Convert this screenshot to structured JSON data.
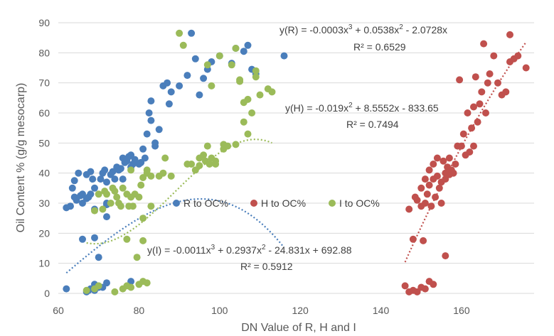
{
  "chart_data": {
    "type": "scatter",
    "xlabel": "DN Value of R, H and I",
    "ylabel": "Oil Content % (g/g mesocarp)",
    "xlim": [
      60,
      178
    ],
    "ylim": [
      0,
      90
    ],
    "xticks": [
      60,
      80,
      100,
      120,
      140,
      160
    ],
    "yticks": [
      0,
      10,
      20,
      30,
      40,
      50,
      60,
      70,
      80,
      90
    ],
    "grid": "horizontal",
    "legend_position": "center",
    "series": [
      {
        "name": "R to OC%",
        "color": "#4a7ebb",
        "points": [
          [
            62,
            1.5
          ],
          [
            67,
            0.5
          ],
          [
            68,
            1.5
          ],
          [
            69,
            3
          ],
          [
            70,
            2
          ],
          [
            71,
            2
          ],
          [
            72,
            3.5
          ],
          [
            69,
            1
          ],
          [
            67.5,
            1
          ],
          [
            62,
            28.5
          ],
          [
            63,
            29
          ],
          [
            63.5,
            35
          ],
          [
            64,
            32
          ],
          [
            64.5,
            31
          ],
          [
            64,
            37.5
          ],
          [
            65,
            40
          ],
          [
            65.5,
            32.5
          ],
          [
            66,
            33
          ],
          [
            66,
            30
          ],
          [
            67,
            31.5
          ],
          [
            67.5,
            32
          ],
          [
            67,
            39.5
          ],
          [
            68,
            40.5
          ],
          [
            68,
            33
          ],
          [
            68.5,
            38
          ],
          [
            69,
            35
          ],
          [
            69,
            28
          ],
          [
            70,
            12
          ],
          [
            70.5,
            38
          ],
          [
            71,
            40
          ],
          [
            71.5,
            41
          ],
          [
            72,
            37
          ],
          [
            72,
            30
          ],
          [
            72,
            25.5
          ],
          [
            73,
            39.5
          ],
          [
            73.5,
            40.5
          ],
          [
            74,
            38
          ],
          [
            74.5,
            42
          ],
          [
            75,
            41
          ],
          [
            75.5,
            41.5
          ],
          [
            76,
            45
          ],
          [
            76,
            38
          ],
          [
            76.5,
            43.5
          ],
          [
            77,
            44
          ],
          [
            77.5,
            45.5
          ],
          [
            78,
            46
          ],
          [
            78,
            42
          ],
          [
            78.5,
            43
          ],
          [
            79,
            44.5
          ],
          [
            80,
            43
          ],
          [
            80.5,
            43.5
          ],
          [
            81,
            48
          ],
          [
            81.5,
            45
          ],
          [
            82,
            53
          ],
          [
            82.5,
            60
          ],
          [
            83,
            64
          ],
          [
            83,
            57.5
          ],
          [
            84,
            49
          ],
          [
            84,
            50
          ],
          [
            85,
            54.5
          ],
          [
            86,
            69
          ],
          [
            87,
            70
          ],
          [
            87.5,
            63
          ],
          [
            88,
            67
          ],
          [
            66,
            18
          ],
          [
            69,
            18.5
          ],
          [
            72,
            29.5
          ],
          [
            78,
            4
          ],
          [
            90,
            69
          ],
          [
            92,
            72.5
          ],
          [
            93,
            86.5
          ],
          [
            94,
            78
          ],
          [
            95,
            66
          ],
          [
            96,
            71.5
          ],
          [
            97,
            74.5
          ],
          [
            98,
            77
          ],
          [
            100,
            79
          ],
          [
            103,
            76.5
          ],
          [
            104,
            81.5
          ],
          [
            106,
            80.5
          ],
          [
            107,
            82.5
          ],
          [
            108,
            74.5
          ],
          [
            109,
            73
          ],
          [
            116,
            79
          ]
        ]
      },
      {
        "name": "H to OC%",
        "color": "#c0504d",
        "points": [
          [
            146,
            2.5
          ],
          [
            147,
            0.5
          ],
          [
            148,
            1
          ],
          [
            149,
            0.5
          ],
          [
            150,
            2
          ],
          [
            151,
            1.5
          ],
          [
            152,
            4
          ],
          [
            153,
            3
          ],
          [
            147,
            28
          ],
          [
            148,
            18
          ],
          [
            148.5,
            32
          ],
          [
            149,
            31
          ],
          [
            150,
            29
          ],
          [
            150,
            35
          ],
          [
            150.5,
            17.5
          ],
          [
            151,
            30
          ],
          [
            151,
            38
          ],
          [
            151.5,
            33
          ],
          [
            152,
            36
          ],
          [
            152,
            41
          ],
          [
            152.5,
            29
          ],
          [
            153,
            38
          ],
          [
            153,
            43
          ],
          [
            153.5,
            32
          ],
          [
            154,
            39
          ],
          [
            154,
            45
          ],
          [
            154.5,
            35
          ],
          [
            155,
            37
          ],
          [
            155,
            30
          ],
          [
            155.5,
            44
          ],
          [
            156,
            40
          ],
          [
            156,
            38
          ],
          [
            156,
            12.5
          ],
          [
            156.5,
            42
          ],
          [
            157,
            45
          ],
          [
            157,
            39.5
          ],
          [
            157.5,
            41
          ],
          [
            158,
            40
          ],
          [
            158.5,
            43
          ],
          [
            159,
            49
          ],
          [
            159.5,
            71
          ],
          [
            160,
            49
          ],
          [
            160.5,
            53
          ],
          [
            161,
            46
          ],
          [
            161.5,
            60
          ],
          [
            162,
            47
          ],
          [
            162.5,
            55
          ],
          [
            163,
            49
          ],
          [
            163,
            62
          ],
          [
            163.5,
            72
          ],
          [
            164,
            57
          ],
          [
            164.5,
            63
          ],
          [
            165,
            67
          ],
          [
            165.5,
            83
          ],
          [
            166,
            60
          ],
          [
            166.5,
            70
          ],
          [
            167,
            73
          ],
          [
            168,
            79
          ],
          [
            169,
            70
          ],
          [
            170,
            66
          ],
          [
            171,
            67
          ],
          [
            172,
            77
          ],
          [
            172,
            86
          ],
          [
            173,
            78
          ],
          [
            174,
            79
          ],
          [
            176,
            75
          ]
        ]
      },
      {
        "name": "I to OC%",
        "color": "#9bbb59",
        "points": [
          [
            67,
            1
          ],
          [
            69,
            1.5
          ],
          [
            70,
            2.5
          ],
          [
            74,
            0.5
          ],
          [
            76,
            1.5
          ],
          [
            77,
            2.5
          ],
          [
            78,
            2
          ],
          [
            80,
            3
          ],
          [
            81,
            4
          ],
          [
            82,
            3.5
          ],
          [
            69,
            27.5
          ],
          [
            70,
            33
          ],
          [
            71,
            28
          ],
          [
            71.5,
            34
          ],
          [
            72,
            33
          ],
          [
            73,
            30
          ],
          [
            73.5,
            35
          ],
          [
            74,
            34
          ],
          [
            74.5,
            32
          ],
          [
            75,
            30
          ],
          [
            75.5,
            29
          ],
          [
            76,
            35
          ],
          [
            77,
            33
          ],
          [
            77.5,
            29
          ],
          [
            78,
            32
          ],
          [
            78,
            41
          ],
          [
            78.5,
            29
          ],
          [
            79,
            33
          ],
          [
            79.5,
            12
          ],
          [
            80,
            32
          ],
          [
            80.5,
            36
          ],
          [
            81,
            38.5
          ],
          [
            81,
            17.5
          ],
          [
            82,
            40
          ],
          [
            82,
            41
          ],
          [
            83,
            39
          ],
          [
            77,
            18
          ],
          [
            81,
            25
          ],
          [
            83,
            29
          ],
          [
            85,
            39
          ],
          [
            86,
            40
          ],
          [
            86.5,
            45
          ],
          [
            88,
            39
          ],
          [
            90,
            86.5
          ],
          [
            91,
            82.5
          ],
          [
            92,
            43
          ],
          [
            93,
            43
          ],
          [
            94,
            41
          ],
          [
            95,
            42.5
          ],
          [
            95,
            45
          ],
          [
            96,
            46
          ],
          [
            96.5,
            44
          ],
          [
            97,
            49
          ],
          [
            97,
            76
          ],
          [
            97.5,
            43
          ],
          [
            98,
            45
          ],
          [
            98,
            69
          ],
          [
            99,
            44
          ],
          [
            99,
            43
          ],
          [
            100,
            79
          ],
          [
            101,
            49.5
          ],
          [
            101,
            48
          ],
          [
            102,
            49
          ],
          [
            103,
            76
          ],
          [
            104,
            81.5
          ],
          [
            104,
            49.5
          ],
          [
            105,
            71
          ],
          [
            105,
            70.5
          ],
          [
            106,
            63.5
          ],
          [
            106,
            57
          ],
          [
            107,
            64.5
          ],
          [
            107,
            53
          ],
          [
            108,
            60
          ],
          [
            109,
            72
          ],
          [
            109,
            74
          ],
          [
            110,
            66
          ],
          [
            112,
            68
          ],
          [
            113,
            67
          ]
        ]
      }
    ],
    "trendlines": [
      {
        "series": "R to OC%",
        "type": "poly3",
        "coef": [
          -0.0003,
          0.0538,
          -2.0728,
          0
        ],
        "range": [
          62,
          116
        ],
        "color": "#4a7ebb"
      },
      {
        "series": "H to OC%",
        "type": "poly2",
        "coef": [
          -0.019,
          8.5552,
          -833.65
        ],
        "range": [
          146,
          176
        ],
        "color": "#c0504d"
      },
      {
        "series": "I to OC%",
        "type": "poly3",
        "coef": [
          -0.0011,
          0.2937,
          -24.831,
          692.88
        ],
        "range": [
          67,
          113
        ],
        "color": "#9bbb59"
      }
    ],
    "annotations": {
      "R_eq_main": "y(R) = -0.0003x",
      "R_eq_s1": "3",
      "R_eq_mid": " + 0.0538x",
      "R_eq_s2": "2",
      "R_eq_tail": " - 2.0728x",
      "R_r2": "R² = 0.6529",
      "H_eq_main": "y(H) = -0.019x",
      "H_eq_s1": "2",
      "H_eq_tail": " + 8.5552x - 833.65",
      "H_r2": "R² = 0.7494",
      "I_eq_main": "y(I) = -0.0011x",
      "I_eq_s1": "3",
      "I_eq_mid": " + 0.2937x",
      "I_eq_s2": "2",
      "I_eq_tail": " - 24.831x + 692.88",
      "I_r2": "R² = 0.5912"
    }
  }
}
